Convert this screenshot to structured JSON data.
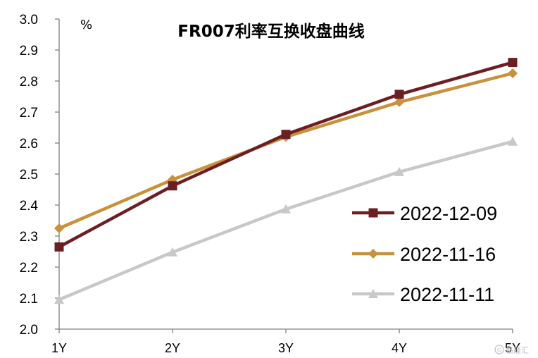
{
  "chart_data": {
    "type": "line",
    "title": "FR007利率互换收盘曲线",
    "unit_label": "%",
    "categories": [
      "1Y",
      "2Y",
      "3Y",
      "4Y",
      "5Y"
    ],
    "ylim": [
      2.0,
      3.0
    ],
    "yticks": [
      "2.0",
      "2.1",
      "2.2",
      "2.3",
      "2.4",
      "2.5",
      "2.6",
      "2.7",
      "2.8",
      "2.9",
      "3.0"
    ],
    "grid": false,
    "legend_position": "right",
    "series": [
      {
        "name": "2022-12-09",
        "color": "#6b1f24",
        "marker": "square",
        "values": [
          2.265,
          2.462,
          2.628,
          2.757,
          2.86
        ]
      },
      {
        "name": "2022-11-16",
        "color": "#c8913a",
        "marker": "diamond",
        "values": [
          2.325,
          2.482,
          2.62,
          2.732,
          2.825
        ]
      },
      {
        "name": "2022-11-11",
        "color": "#c8c8c8",
        "marker": "triangle",
        "values": [
          2.095,
          2.248,
          2.387,
          2.507,
          2.605
        ]
      }
    ]
  },
  "watermark": {
    "icon": "gelonghui-logo-icon",
    "text": "格隆汇"
  }
}
